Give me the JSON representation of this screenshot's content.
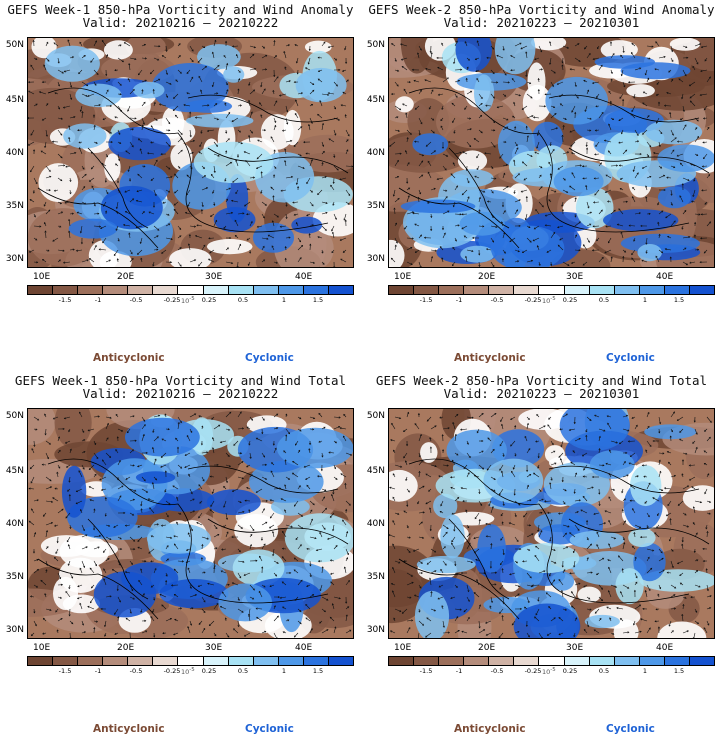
{
  "panels": [
    {
      "title": "GEFS Week-1 850-hPa Vorticity and Wind Anomaly",
      "valid": "Valid: 20210216 – 20210222"
    },
    {
      "title": "GEFS Week-2 850-hPa Vorticity and Wind Anomaly",
      "valid": "Valid: 20210223 – 20210301"
    },
    {
      "title": "GEFS Week-1 850-hPa Vorticity and Wind Total",
      "valid": "Valid: 20210216 – 20210222"
    },
    {
      "title": "GEFS Week-2 850-hPa Vorticity and Wind Total",
      "valid": "Valid: 20210223 – 20210301"
    }
  ],
  "lat_labels": [
    "50N",
    "45N",
    "40N",
    "35N",
    "30N"
  ],
  "lon_labels": [
    "10E",
    "20E",
    "30E",
    "40E"
  ],
  "colorbar": {
    "ticks": [
      "-1.5",
      "-1",
      "-0.5",
      "-0.25",
      "0.25",
      "0.5",
      "1",
      "1.5"
    ],
    "scale_label": "10",
    "scale_exponent": "-5",
    "colors": [
      "#6e4533",
      "#845845",
      "#9c6f5b",
      "#b48c7b",
      "#cfb2a5",
      "#e8d9d1",
      "#ffffff",
      "#d8f3fb",
      "#a8e2f4",
      "#7fbff0",
      "#4e98e8",
      "#2b73df",
      "#1452d0"
    ]
  },
  "legend": {
    "anticyclonic": "Anticyclonic",
    "cyclonic": "Cyclonic"
  },
  "theme": {
    "anticyclonic_color": "#7b4a34",
    "cyclonic_color": "#1f63d6"
  }
}
